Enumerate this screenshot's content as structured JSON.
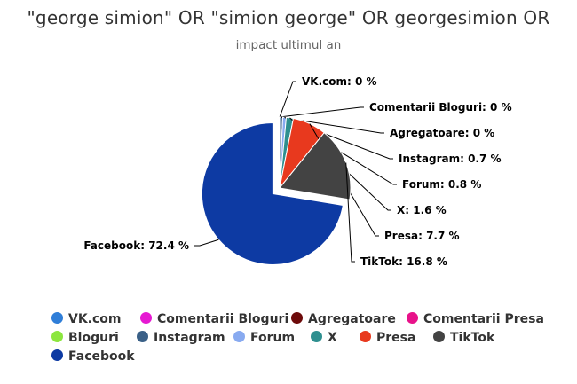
{
  "chart_data": {
    "type": "pie",
    "title": "\"george simion\" OR \"simion george\" OR georgesimion OR",
    "subtitle": "impact ultimul an",
    "slices": [
      {
        "name": "VK.com",
        "value": 0,
        "label": "VK.com: 0 %",
        "color": "#2f7ed8"
      },
      {
        "name": "Comentarii Bloguri",
        "value": 0,
        "label": "Comentarii Bloguri: 0 %",
        "color": "#e619d2"
      },
      {
        "name": "Agregatoare",
        "value": 0,
        "label": "Agregatoare: 0 %",
        "color": "#6d0a0a"
      },
      {
        "name": "Comentarii Presa",
        "value": 0,
        "label": null,
        "color": "#e8128a"
      },
      {
        "name": "Bloguri",
        "value": 0,
        "label": null,
        "color": "#8ce63f"
      },
      {
        "name": "Instagram",
        "value": 0.7,
        "label": "Instagram: 0.7 %",
        "color": "#3a6087"
      },
      {
        "name": "Forum",
        "value": 0.8,
        "label": "Forum: 0.8 %",
        "color": "#88aaf0"
      },
      {
        "name": "X",
        "value": 1.6,
        "label": "X: 1.6 %",
        "color": "#2e8f8f"
      },
      {
        "name": "Presa",
        "value": 7.7,
        "label": "Presa: 7.7 %",
        "color": "#e8391e"
      },
      {
        "name": "TikTok",
        "value": 16.8,
        "label": "TikTok: 16.8 %",
        "color": "#434343"
      },
      {
        "name": "Facebook",
        "value": 72.4,
        "label": "Facebook: 72.4 %",
        "color": "#0d3aa3"
      }
    ],
    "legend_position": "bottom"
  }
}
